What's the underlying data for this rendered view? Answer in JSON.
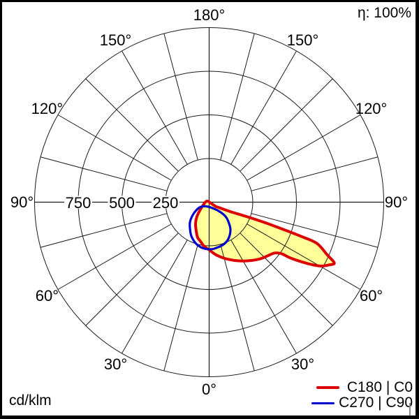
{
  "header": {
    "efficiency": "η: 100%"
  },
  "footer": {
    "unit": "cd/klm"
  },
  "legend": {
    "entries": [
      {
        "label": "C180 | C0",
        "color": "#dd0000"
      },
      {
        "label": "C270 | C90",
        "color": "#0000cc"
      }
    ]
  },
  "chart_data": {
    "type": "polar_photometric",
    "title": "Luminous intensity distribution curve (polar)",
    "unit": "cd/klm",
    "efficiency_label": "η: 100%",
    "angle_tick_step_deg": 15,
    "axis_max": 1000,
    "ring_values": [
      250,
      500,
      750,
      1000
    ],
    "radial_axis_labels": [
      {
        "label": "750",
        "value": 750
      },
      {
        "label": "500",
        "value": 500
      },
      {
        "label": "250",
        "value": 250
      }
    ],
    "angle_labels": [
      {
        "label": "180°",
        "gamma": 180
      },
      {
        "label": "150°",
        "gamma": -150
      },
      {
        "label": "150°",
        "gamma": 150
      },
      {
        "label": "120°",
        "gamma": -120
      },
      {
        "label": "120°",
        "gamma": 120
      },
      {
        "label": "90°",
        "gamma": -90
      },
      {
        "label": "90°",
        "gamma": 90
      },
      {
        "label": "60°",
        "gamma": -60
      },
      {
        "label": "60°",
        "gamma": 60
      },
      {
        "label": "30°",
        "gamma": -30
      },
      {
        "label": "30°",
        "gamma": 30
      },
      {
        "label": "0°",
        "gamma": 0
      }
    ],
    "gamma_convention": "0° points down (nadir); positive gamma = right half (C0/C90 plane), negative gamma = left half (C180/C270 plane); values in cd/klm",
    "series": [
      {
        "name": "C180 | C0",
        "color": "#dd0000",
        "fill_color": "#ffff99",
        "stroke_width": 4,
        "points_gamma_value": [
          [
            -113.0,
            15
          ],
          [
            -60.0,
            44
          ],
          [
            -50.0,
            66
          ],
          [
            -40.5,
            108
          ],
          [
            -32.6,
            145
          ],
          [
            -24.6,
            179
          ],
          [
            -18.1,
            213
          ],
          [
            -12.7,
            229
          ],
          [
            -6.8,
            253
          ],
          [
            0.4,
            275
          ],
          [
            7.9,
            306
          ],
          [
            16.3,
            337
          ],
          [
            25.9,
            373
          ],
          [
            34.6,
            407
          ],
          [
            42.4,
            438
          ],
          [
            47.5,
            455
          ],
          [
            52.2,
            475
          ],
          [
            54.6,
            510
          ],
          [
            55.3,
            554
          ],
          [
            56.3,
            597
          ],
          [
            58.1,
            665
          ],
          [
            60.0,
            731
          ],
          [
            62.3,
            774
          ],
          [
            64.1,
            797
          ],
          [
            65.9,
            742
          ],
          [
            69.1,
            660
          ],
          [
            69.6,
            559
          ],
          [
            69.8,
            460
          ],
          [
            69.9,
            344
          ],
          [
            69.0,
            230
          ],
          [
            66.1,
            134
          ],
          [
            60.9,
            62
          ],
          [
            57.1,
            41
          ],
          [
            59.0,
            12
          ]
        ]
      },
      {
        "name": "C270 | C90",
        "color": "#0000cc",
        "fill_color": null,
        "stroke_width": 3.2,
        "points_gamma_value": [
          [
            -60.5,
            53
          ],
          [
            -37.0,
            30
          ],
          [
            18.4,
            32
          ],
          [
            47.2,
            74
          ],
          [
            48.9,
            125
          ],
          [
            43.1,
            167
          ],
          [
            37.0,
            203
          ],
          [
            27.6,
            237
          ],
          [
            18.7,
            256
          ],
          [
            9.1,
            265
          ],
          [
            2.1,
            270
          ],
          [
            -8.3,
            265
          ],
          [
            -18.4,
            247
          ],
          [
            -27.7,
            219
          ],
          [
            -35.5,
            189
          ],
          [
            -44.0,
            158
          ],
          [
            -51.8,
            120
          ],
          [
            -59.0,
            82
          ]
        ]
      }
    ]
  }
}
